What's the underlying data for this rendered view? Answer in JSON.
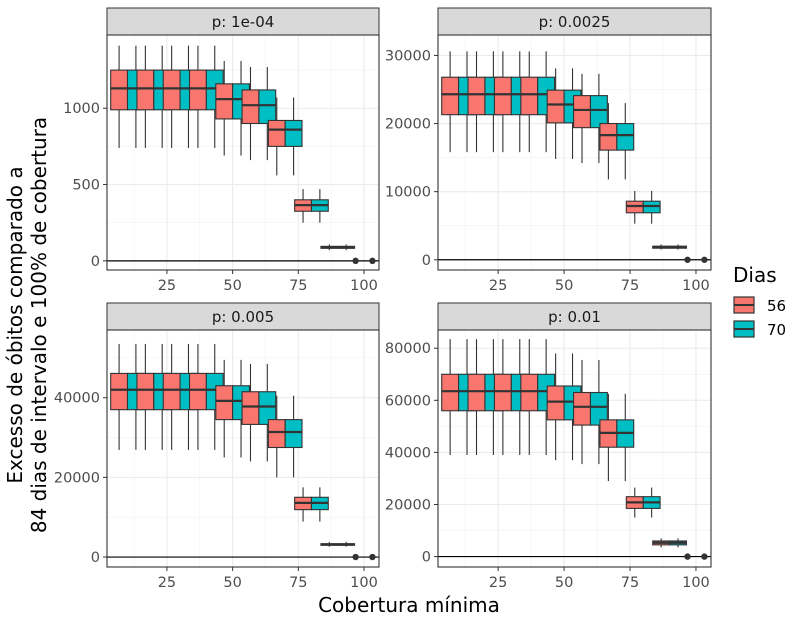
{
  "chart_data": {
    "type": "box",
    "xlabel": "Cobertura mínima",
    "ylabel_lines": [
      "Excesso de óbitos comparado a",
      "84 dias de intervalo e 100% de cobertura"
    ],
    "legend": {
      "title": "Dias",
      "position": "right",
      "entries": [
        {
          "label": "56",
          "color": "#F8766D"
        },
        {
          "label": "70",
          "color": "#00BFC4"
        }
      ]
    },
    "x_ticks": [
      25,
      50,
      75,
      100
    ],
    "grid": true,
    "facets": [
      {
        "strip": "p: 1e-04",
        "ylim": [
          -60,
          1480
        ],
        "y_ticks": [
          0,
          500,
          1000
        ],
        "y_tick_labels": [
          "0",
          "500",
          "1000"
        ],
        "boxes": [
          {
            "x": 10,
            "series": "56",
            "min": 740,
            "q1": 990,
            "median": 1130,
            "q3": 1250,
            "max": 1410
          },
          {
            "x": 10,
            "series": "70",
            "min": 740,
            "q1": 990,
            "median": 1130,
            "q3": 1250,
            "max": 1410
          },
          {
            "x": 20,
            "series": "56",
            "min": 740,
            "q1": 990,
            "median": 1130,
            "q3": 1250,
            "max": 1410
          },
          {
            "x": 20,
            "series": "70",
            "min": 740,
            "q1": 990,
            "median": 1130,
            "q3": 1250,
            "max": 1410
          },
          {
            "x": 30,
            "series": "56",
            "min": 740,
            "q1": 990,
            "median": 1130,
            "q3": 1250,
            "max": 1410
          },
          {
            "x": 30,
            "series": "70",
            "min": 740,
            "q1": 990,
            "median": 1130,
            "q3": 1250,
            "max": 1410
          },
          {
            "x": 40,
            "series": "56",
            "min": 740,
            "q1": 990,
            "median": 1130,
            "q3": 1250,
            "max": 1410
          },
          {
            "x": 40,
            "series": "70",
            "min": 740,
            "q1": 990,
            "median": 1130,
            "q3": 1250,
            "max": 1410
          },
          {
            "x": 50,
            "series": "56",
            "min": 690,
            "q1": 930,
            "median": 1060,
            "q3": 1160,
            "max": 1310
          },
          {
            "x": 50,
            "series": "70",
            "min": 690,
            "q1": 930,
            "median": 1060,
            "q3": 1160,
            "max": 1310
          },
          {
            "x": 60,
            "series": "56",
            "min": 660,
            "q1": 900,
            "median": 1020,
            "q3": 1120,
            "max": 1270
          },
          {
            "x": 60,
            "series": "70",
            "min": 660,
            "q1": 900,
            "median": 1020,
            "q3": 1120,
            "max": 1270
          },
          {
            "x": 70,
            "series": "56",
            "min": 560,
            "q1": 750,
            "median": 860,
            "q3": 920,
            "max": 1070
          },
          {
            "x": 70,
            "series": "70",
            "min": 560,
            "q1": 750,
            "median": 860,
            "q3": 920,
            "max": 1070
          },
          {
            "x": 80,
            "series": "56",
            "min": 250,
            "q1": 325,
            "median": 365,
            "q3": 400,
            "max": 470
          },
          {
            "x": 80,
            "series": "70",
            "min": 250,
            "q1": 325,
            "median": 365,
            "q3": 400,
            "max": 470
          },
          {
            "x": 90,
            "series": "56",
            "min": 70,
            "q1": 82,
            "median": 88,
            "q3": 95,
            "max": 108
          },
          {
            "x": 90,
            "series": "70",
            "min": 70,
            "q1": 82,
            "median": 88,
            "q3": 95,
            "max": 108
          },
          {
            "x": 100,
            "series": "56",
            "min": 0,
            "q1": 0,
            "median": 0,
            "q3": 0,
            "max": 0
          },
          {
            "x": 100,
            "series": "70",
            "min": 0,
            "q1": 0,
            "median": 0,
            "q3": 0,
            "max": 0
          }
        ]
      },
      {
        "strip": "p: 0.0025",
        "ylim": [
          -1500,
          33000
        ],
        "y_ticks": [
          0,
          10000,
          20000,
          30000
        ],
        "y_tick_labels": [
          "0",
          "10000",
          "20000",
          "30000"
        ],
        "boxes": [
          {
            "x": 10,
            "series": "56",
            "min": 15800,
            "q1": 21300,
            "median": 24300,
            "q3": 26800,
            "max": 30600
          },
          {
            "x": 10,
            "series": "70",
            "min": 15800,
            "q1": 21300,
            "median": 24300,
            "q3": 26800,
            "max": 30600
          },
          {
            "x": 20,
            "series": "56",
            "min": 15800,
            "q1": 21300,
            "median": 24300,
            "q3": 26800,
            "max": 30600
          },
          {
            "x": 20,
            "series": "70",
            "min": 15800,
            "q1": 21300,
            "median": 24300,
            "q3": 26800,
            "max": 30600
          },
          {
            "x": 30,
            "series": "56",
            "min": 15800,
            "q1": 21300,
            "median": 24300,
            "q3": 26800,
            "max": 30600
          },
          {
            "x": 30,
            "series": "70",
            "min": 15800,
            "q1": 21300,
            "median": 24300,
            "q3": 26800,
            "max": 30600
          },
          {
            "x": 40,
            "series": "56",
            "min": 15800,
            "q1": 21300,
            "median": 24300,
            "q3": 26800,
            "max": 30600
          },
          {
            "x": 40,
            "series": "70",
            "min": 15800,
            "q1": 21300,
            "median": 24300,
            "q3": 26800,
            "max": 30600
          },
          {
            "x": 50,
            "series": "56",
            "min": 14800,
            "q1": 20100,
            "median": 22800,
            "q3": 24900,
            "max": 28100
          },
          {
            "x": 50,
            "series": "70",
            "min": 14800,
            "q1": 20100,
            "median": 22800,
            "q3": 24900,
            "max": 28100
          },
          {
            "x": 60,
            "series": "56",
            "min": 14200,
            "q1": 19400,
            "median": 22000,
            "q3": 24100,
            "max": 27300
          },
          {
            "x": 60,
            "series": "70",
            "min": 14200,
            "q1": 19400,
            "median": 22000,
            "q3": 24100,
            "max": 27300
          },
          {
            "x": 70,
            "series": "56",
            "min": 11800,
            "q1": 16100,
            "median": 18300,
            "q3": 20000,
            "max": 23000
          },
          {
            "x": 70,
            "series": "70",
            "min": 11800,
            "q1": 16100,
            "median": 18300,
            "q3": 20000,
            "max": 23000
          },
          {
            "x": 80,
            "series": "56",
            "min": 5300,
            "q1": 6900,
            "median": 7900,
            "q3": 8600,
            "max": 10100
          },
          {
            "x": 80,
            "series": "70",
            "min": 5300,
            "q1": 6900,
            "median": 7900,
            "q3": 8600,
            "max": 10100
          },
          {
            "x": 90,
            "series": "56",
            "min": 1500,
            "q1": 1700,
            "median": 1850,
            "q3": 2000,
            "max": 2250
          },
          {
            "x": 90,
            "series": "70",
            "min": 1500,
            "q1": 1700,
            "median": 1850,
            "q3": 2000,
            "max": 2250
          },
          {
            "x": 100,
            "series": "56",
            "min": 0,
            "q1": 0,
            "median": 0,
            "q3": 0,
            "max": 0
          },
          {
            "x": 100,
            "series": "70",
            "min": 0,
            "q1": 0,
            "median": 0,
            "q3": 0,
            "max": 0
          }
        ]
      },
      {
        "strip": "p: 0.005",
        "ylim": [
          -2500,
          57000
        ],
        "y_ticks": [
          0,
          20000,
          40000
        ],
        "y_tick_labels": [
          "0",
          "20000",
          "40000"
        ],
        "boxes": [
          {
            "x": 10,
            "series": "56",
            "min": 26900,
            "q1": 37000,
            "median": 42000,
            "q3": 46100,
            "max": 53500
          },
          {
            "x": 10,
            "series": "70",
            "min": 26900,
            "q1": 37000,
            "median": 42000,
            "q3": 46100,
            "max": 53500
          },
          {
            "x": 20,
            "series": "56",
            "min": 26900,
            "q1": 37000,
            "median": 42000,
            "q3": 46100,
            "max": 53500
          },
          {
            "x": 20,
            "series": "70",
            "min": 26900,
            "q1": 37000,
            "median": 42000,
            "q3": 46100,
            "max": 53500
          },
          {
            "x": 30,
            "series": "56",
            "min": 26900,
            "q1": 37000,
            "median": 42000,
            "q3": 46100,
            "max": 53500
          },
          {
            "x": 30,
            "series": "70",
            "min": 26900,
            "q1": 37000,
            "median": 42000,
            "q3": 46100,
            "max": 53500
          },
          {
            "x": 40,
            "series": "56",
            "min": 26900,
            "q1": 37000,
            "median": 42000,
            "q3": 46100,
            "max": 53500
          },
          {
            "x": 40,
            "series": "70",
            "min": 26900,
            "q1": 37000,
            "median": 42000,
            "q3": 46100,
            "max": 53500
          },
          {
            "x": 50,
            "series": "56",
            "min": 25000,
            "q1": 34500,
            "median": 39200,
            "q3": 43000,
            "max": 49500
          },
          {
            "x": 50,
            "series": "70",
            "min": 25000,
            "q1": 34500,
            "median": 39200,
            "q3": 43000,
            "max": 49500
          },
          {
            "x": 60,
            "series": "56",
            "min": 24000,
            "q1": 33300,
            "median": 37800,
            "q3": 41500,
            "max": 48500
          },
          {
            "x": 60,
            "series": "70",
            "min": 24000,
            "q1": 33300,
            "median": 37800,
            "q3": 41500,
            "max": 48500
          },
          {
            "x": 70,
            "series": "56",
            "min": 20000,
            "q1": 27500,
            "median": 31400,
            "q3": 34500,
            "max": 40500
          },
          {
            "x": 70,
            "series": "70",
            "min": 20000,
            "q1": 27500,
            "median": 31400,
            "q3": 34500,
            "max": 40500
          },
          {
            "x": 80,
            "series": "56",
            "min": 8900,
            "q1": 11900,
            "median": 13600,
            "q3": 15000,
            "max": 17500
          },
          {
            "x": 80,
            "series": "70",
            "min": 8900,
            "q1": 11900,
            "median": 13600,
            "q3": 15000,
            "max": 17500
          },
          {
            "x": 90,
            "series": "56",
            "min": 2600,
            "q1": 2950,
            "median": 3150,
            "q3": 3350,
            "max": 3800
          },
          {
            "x": 90,
            "series": "70",
            "min": 2600,
            "q1": 2950,
            "median": 3150,
            "q3": 3350,
            "max": 3800
          },
          {
            "x": 100,
            "series": "56",
            "min": 0,
            "q1": 0,
            "median": 0,
            "q3": 0,
            "max": 0
          },
          {
            "x": 100,
            "series": "70",
            "min": 0,
            "q1": 0,
            "median": 0,
            "q3": 0,
            "max": 0
          }
        ]
      },
      {
        "strip": "p: 0.01",
        "ylim": [
          -4000,
          87000
        ],
        "y_ticks": [
          0,
          20000,
          40000,
          60000,
          80000
        ],
        "y_tick_labels": [
          "0",
          "20000",
          "40000",
          "60000",
          "80000"
        ],
        "boxes": [
          {
            "x": 10,
            "series": "56",
            "min": 39000,
            "q1": 56000,
            "median": 63500,
            "q3": 70000,
            "max": 83500
          },
          {
            "x": 10,
            "series": "70",
            "min": 39000,
            "q1": 56000,
            "median": 63500,
            "q3": 70000,
            "max": 83500
          },
          {
            "x": 20,
            "series": "56",
            "min": 39000,
            "q1": 56000,
            "median": 63500,
            "q3": 70000,
            "max": 83500
          },
          {
            "x": 20,
            "series": "70",
            "min": 39000,
            "q1": 56000,
            "median": 63500,
            "q3": 70000,
            "max": 83500
          },
          {
            "x": 30,
            "series": "56",
            "min": 39000,
            "q1": 56000,
            "median": 63500,
            "q3": 70000,
            "max": 83500
          },
          {
            "x": 30,
            "series": "70",
            "min": 39000,
            "q1": 56000,
            "median": 63500,
            "q3": 70000,
            "max": 83500
          },
          {
            "x": 40,
            "series": "56",
            "min": 39000,
            "q1": 56000,
            "median": 63500,
            "q3": 70000,
            "max": 83500
          },
          {
            "x": 40,
            "series": "70",
            "min": 39000,
            "q1": 56000,
            "median": 63500,
            "q3": 70000,
            "max": 83500
          },
          {
            "x": 50,
            "series": "56",
            "min": 37000,
            "q1": 52500,
            "median": 59500,
            "q3": 65500,
            "max": 78000
          },
          {
            "x": 50,
            "series": "70",
            "min": 37000,
            "q1": 52500,
            "median": 59500,
            "q3": 65500,
            "max": 78000
          },
          {
            "x": 60,
            "series": "56",
            "min": 35500,
            "q1": 50500,
            "median": 57500,
            "q3": 63000,
            "max": 75500
          },
          {
            "x": 60,
            "series": "70",
            "min": 35500,
            "q1": 50500,
            "median": 57500,
            "q3": 63000,
            "max": 75500
          },
          {
            "x": 70,
            "series": "56",
            "min": 29000,
            "q1": 42000,
            "median": 47500,
            "q3": 52500,
            "max": 62500
          },
          {
            "x": 70,
            "series": "70",
            "min": 29000,
            "q1": 42000,
            "median": 47500,
            "q3": 52500,
            "max": 62500
          },
          {
            "x": 80,
            "series": "56",
            "min": 15000,
            "q1": 18500,
            "median": 20800,
            "q3": 23000,
            "max": 26500
          },
          {
            "x": 80,
            "series": "70",
            "min": 15000,
            "q1": 18500,
            "median": 20800,
            "q3": 23000,
            "max": 26500
          },
          {
            "x": 90,
            "series": "56",
            "min": 3500,
            "q1": 4500,
            "median": 5300,
            "q3": 6000,
            "max": 7000
          },
          {
            "x": 90,
            "series": "70",
            "min": 3500,
            "q1": 4500,
            "median": 5300,
            "q3": 6000,
            "max": 7000
          },
          {
            "x": 100,
            "series": "56",
            "min": 0,
            "q1": 0,
            "median": 0,
            "q3": 0,
            "max": 0
          },
          {
            "x": 100,
            "series": "70",
            "min": 0,
            "q1": 0,
            "median": 0,
            "q3": 0,
            "max": 0
          }
        ]
      }
    ]
  }
}
